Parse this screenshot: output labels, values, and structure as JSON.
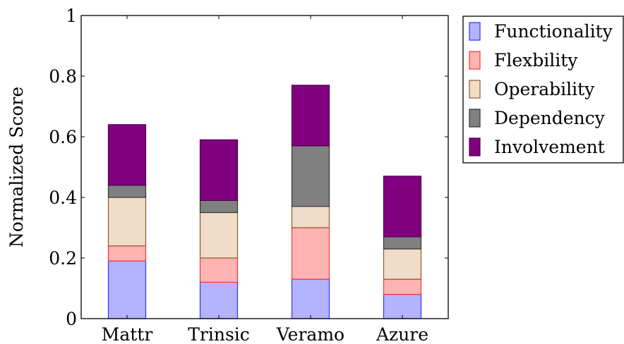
{
  "chart_data": {
    "type": "bar",
    "stacked": true,
    "categories": [
      "Mattr",
      "Trinsic",
      "Veramo",
      "Azure"
    ],
    "series": [
      {
        "name": "Functionality",
        "values": [
          0.19,
          0.12,
          0.13,
          0.08
        ],
        "fill": "#b3b3ff",
        "stroke": "#3333ff"
      },
      {
        "name": "Flexbility",
        "values": [
          0.05,
          0.08,
          0.17,
          0.05
        ],
        "fill": "#ffb3b3",
        "stroke": "#ff3333"
      },
      {
        "name": "Operability",
        "values": [
          0.16,
          0.15,
          0.07,
          0.1
        ],
        "fill": "#f0dcc8",
        "stroke": "#8b5a2b"
      },
      {
        "name": "Dependency",
        "values": [
          0.04,
          0.04,
          0.2,
          0.04
        ],
        "fill": "#808080",
        "stroke": "#333333"
      },
      {
        "name": "Involvement",
        "values": [
          0.2,
          0.2,
          0.2,
          0.2
        ],
        "fill": "#800080",
        "stroke": "#4d004d"
      }
    ],
    "ylabel": "Normalized Score",
    "xlabel": "",
    "ylim": [
      0,
      1
    ],
    "yticks": [
      "0",
      "0.2",
      "0.4",
      "0.6",
      "0.8",
      "1"
    ],
    "grid": false,
    "legend_position": "outside-top-right"
  }
}
